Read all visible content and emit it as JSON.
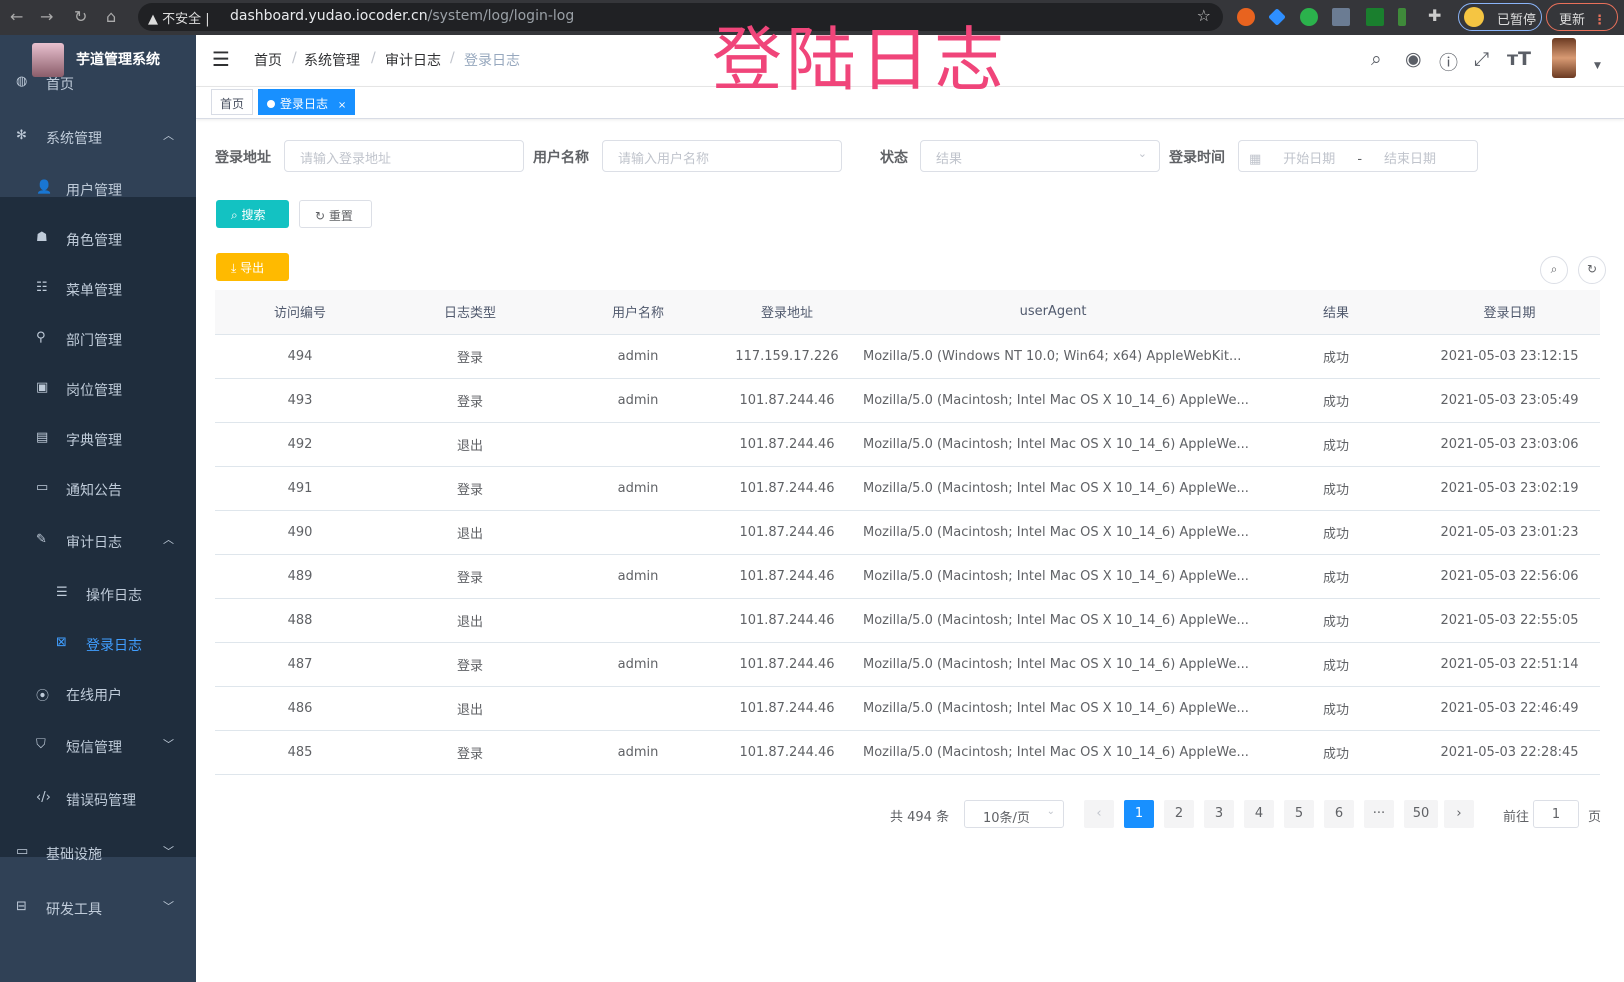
{
  "browser": {
    "warning": "不安全",
    "url_host": "dashboard.yudao.iocoder.cn",
    "url_path": "/system/log/login-log",
    "paused_label": "已暂停",
    "update_label": "更新"
  },
  "app": {
    "title": "芋道管理系统"
  },
  "overlay_title": "登陆日志",
  "sidebar": {
    "items": [
      {
        "label": "首页",
        "icon": "dashboard-icon"
      },
      {
        "label": "系统管理",
        "icon": "gear-icon",
        "expanded": true
      },
      {
        "label": "用户管理",
        "icon": "user-icon"
      },
      {
        "label": "角色管理",
        "icon": "role-icon"
      },
      {
        "label": "菜单管理",
        "icon": "menu-icon"
      },
      {
        "label": "部门管理",
        "icon": "tree-icon"
      },
      {
        "label": "岗位管理",
        "icon": "post-icon"
      },
      {
        "label": "字典管理",
        "icon": "dict-icon"
      },
      {
        "label": "通知公告",
        "icon": "message-icon"
      },
      {
        "label": "审计日志",
        "icon": "edit-icon",
        "expanded": true
      },
      {
        "label": "操作日志",
        "icon": "form-icon"
      },
      {
        "label": "登录日志",
        "icon": "logininfor-icon",
        "active": true
      },
      {
        "label": "在线用户",
        "icon": "online-icon"
      },
      {
        "label": "短信管理",
        "icon": "shield-icon"
      },
      {
        "label": "错误码管理",
        "icon": "code-icon"
      },
      {
        "label": "基础设施",
        "icon": "monitor-icon"
      },
      {
        "label": "研发工具",
        "icon": "tool-icon"
      }
    ]
  },
  "breadcrumb": [
    "首页",
    "系统管理",
    "审计日志",
    "登录日志"
  ],
  "tags": [
    {
      "label": "首页"
    },
    {
      "label": "登录日志",
      "close": "×"
    }
  ],
  "filters": {
    "ip_label": "登录地址",
    "ip_placeholder": "请输入登录地址",
    "user_label": "用户名称",
    "user_placeholder": "请输入用户名称",
    "status_label": "状态",
    "status_placeholder": "结果",
    "time_label": "登录时间",
    "start_placeholder": "开始日期",
    "range_sep": "-",
    "end_placeholder": "结束日期"
  },
  "buttons": {
    "search": "搜索",
    "reset": "重置",
    "export": "导出"
  },
  "colors": {
    "sidebar": "#304156",
    "primary": "#1890ff",
    "search": "#13c2c2",
    "export": "#ffba00",
    "overlay": "#f0457a"
  },
  "table": {
    "columns": [
      "访问编号",
      "日志类型",
      "用户名称",
      "登录地址",
      "userAgent",
      "结果",
      "登录日期"
    ],
    "rows": [
      [
        "494",
        "登录",
        "admin",
        "117.159.17.226",
        "Mozilla/5.0 (Windows NT 10.0; Win64; x64) AppleWebKit...",
        "成功",
        "2021-05-03 23:12:15"
      ],
      [
        "493",
        "登录",
        "admin",
        "101.87.244.46",
        "Mozilla/5.0 (Macintosh; Intel Mac OS X 10_14_6) AppleWe...",
        "成功",
        "2021-05-03 23:05:49"
      ],
      [
        "492",
        "退出",
        "",
        "101.87.244.46",
        "Mozilla/5.0 (Macintosh; Intel Mac OS X 10_14_6) AppleWe...",
        "成功",
        "2021-05-03 23:03:06"
      ],
      [
        "491",
        "登录",
        "admin",
        "101.87.244.46",
        "Mozilla/5.0 (Macintosh; Intel Mac OS X 10_14_6) AppleWe...",
        "成功",
        "2021-05-03 23:02:19"
      ],
      [
        "490",
        "退出",
        "",
        "101.87.244.46",
        "Mozilla/5.0 (Macintosh; Intel Mac OS X 10_14_6) AppleWe...",
        "成功",
        "2021-05-03 23:01:23"
      ],
      [
        "489",
        "登录",
        "admin",
        "101.87.244.46",
        "Mozilla/5.0 (Macintosh; Intel Mac OS X 10_14_6) AppleWe...",
        "成功",
        "2021-05-03 22:56:06"
      ],
      [
        "488",
        "退出",
        "",
        "101.87.244.46",
        "Mozilla/5.0 (Macintosh; Intel Mac OS X 10_14_6) AppleWe...",
        "成功",
        "2021-05-03 22:55:05"
      ],
      [
        "487",
        "登录",
        "admin",
        "101.87.244.46",
        "Mozilla/5.0 (Macintosh; Intel Mac OS X 10_14_6) AppleWe...",
        "成功",
        "2021-05-03 22:51:14"
      ],
      [
        "486",
        "退出",
        "",
        "101.87.244.46",
        "Mozilla/5.0 (Macintosh; Intel Mac OS X 10_14_6) AppleWe...",
        "成功",
        "2021-05-03 22:46:49"
      ],
      [
        "485",
        "登录",
        "admin",
        "101.87.244.46",
        "Mozilla/5.0 (Macintosh; Intel Mac OS X 10_14_6) AppleWe...",
        "成功",
        "2021-05-03 22:28:45"
      ]
    ]
  },
  "pagination": {
    "total": "共 494 条",
    "page_size": "10条/页",
    "pages": [
      "1",
      "2",
      "3",
      "4",
      "5",
      "6",
      "···",
      "50"
    ],
    "current": "1",
    "goto_label": "前往",
    "goto_value": "1",
    "page_suffix": "页"
  }
}
